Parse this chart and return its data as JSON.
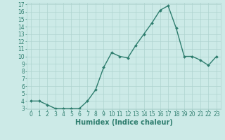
{
  "xlabel": "Humidex (Indice chaleur)",
  "x": [
    0,
    1,
    2,
    3,
    4,
    5,
    6,
    7,
    8,
    9,
    10,
    11,
    12,
    13,
    14,
    15,
    16,
    17,
    18,
    19,
    20,
    21,
    22,
    23
  ],
  "y": [
    4,
    4,
    3.5,
    3,
    3,
    3,
    3,
    4,
    5.5,
    8.5,
    10.5,
    10,
    9.8,
    11.5,
    13,
    14.5,
    16.2,
    16.8,
    13.8,
    10,
    10,
    9.5,
    8.8,
    10
  ],
  "line_color": "#2e7d6e",
  "marker": "D",
  "marker_size": 2,
  "bg_color": "#cceae7",
  "grid_color": "#aed4d0",
  "ylim": [
    3,
    17
  ],
  "xlim": [
    -0.5,
    23.5
  ],
  "yticks": [
    3,
    4,
    5,
    6,
    7,
    8,
    9,
    10,
    11,
    12,
    13,
    14,
    15,
    16,
    17
  ],
  "xticks": [
    0,
    1,
    2,
    3,
    4,
    5,
    6,
    7,
    8,
    9,
    10,
    11,
    12,
    13,
    14,
    15,
    16,
    17,
    18,
    19,
    20,
    21,
    22,
    23
  ],
  "tick_label_fontsize": 5.5,
  "xlabel_fontsize": 7,
  "line_width": 1.0
}
